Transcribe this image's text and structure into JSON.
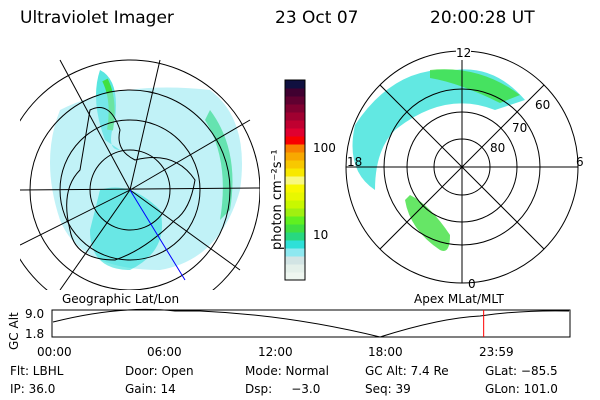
{
  "header": {
    "instrument": "Ultraviolet Imager",
    "date": "23 Oct 07",
    "time": "20:00:28 UT"
  },
  "colorbar": {
    "label": "photon cm⁻²s⁻¹",
    "ticks": [
      "100",
      "10"
    ],
    "colors": [
      "#eef6f0",
      "#e4f0ea",
      "#d2e4e4",
      "#8ee8f0",
      "#2ee0d8",
      "#28d880",
      "#40e040",
      "#60f020",
      "#a0f010",
      "#c8f800",
      "#e8f800",
      "#f8f800",
      "#f8f880",
      "#f8e800",
      "#f8c800",
      "#f8a800",
      "#f88000",
      "#f80000",
      "#e00030",
      "#c00030",
      "#a00030",
      "#800030",
      "#600030",
      "#400030",
      "#101040"
    ]
  },
  "left_plot": {
    "label": "Geographic Lat/Lon"
  },
  "right_plot": {
    "label": "Apex MLat/MLT",
    "mlt_labels": [
      "12",
      "18",
      "6",
      "0"
    ],
    "lat_labels": [
      "60",
      "70",
      "80"
    ]
  },
  "altitude_panel": {
    "axis_label": "GC Alt",
    "y_ticks": [
      "9.0",
      "1.8"
    ],
    "x_ticks": [
      "00:00",
      "06:00",
      "12:00",
      "18:00",
      "23:59"
    ],
    "current_marker_hour": 20.0
  },
  "status": {
    "row1": [
      "Flt: LBHL",
      "Door: Open",
      "Mode: Normal",
      "GC Alt: 7.4 Re",
      "GLat: −85.5"
    ],
    "row2": [
      "IP: 36.0",
      "Gain: 14",
      "Dsp:     −3.0",
      "Seq: 39",
      "GLon: 101.0"
    ]
  }
}
